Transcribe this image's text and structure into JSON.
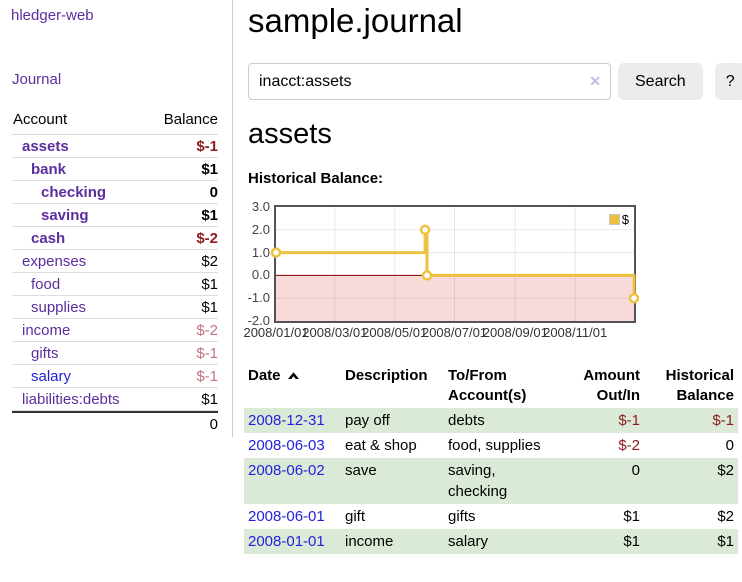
{
  "app_title": "hledger-web",
  "sidebar": {
    "journal_link": "Journal",
    "accounts": {
      "header_account": "Account",
      "header_balance": "Balance",
      "rows": [
        {
          "name": "assets",
          "balance": "$-1"
        },
        {
          "name": "bank",
          "balance": "$1"
        },
        {
          "name": "checking",
          "balance": "0"
        },
        {
          "name": "saving",
          "balance": "$1"
        },
        {
          "name": "cash",
          "balance": "$-2"
        },
        {
          "name": "expenses",
          "balance": "$2"
        },
        {
          "name": "food",
          "balance": "$1"
        },
        {
          "name": "supplies",
          "balance": "$1"
        },
        {
          "name": "income",
          "balance": "$-2"
        },
        {
          "name": "gifts",
          "balance": "$-1"
        },
        {
          "name": "salary",
          "balance": "$-1"
        },
        {
          "name": "liabilities:debts",
          "balance": "$1"
        }
      ],
      "total": "0"
    }
  },
  "main": {
    "title": "sample.journal",
    "search": {
      "value": "inacct:assets",
      "clear_glyph": "✕",
      "button_label": "Search",
      "help_label": "?"
    },
    "section_title": "assets",
    "chart_title": "Historical Balance:"
  },
  "chart_data": {
    "type": "line",
    "step": true,
    "title": "Historical Balance",
    "series": [
      {
        "name": "$",
        "color": "#edc240",
        "points": [
          [
            "2008-01-01",
            1
          ],
          [
            "2008-06-01",
            2
          ],
          [
            "2008-06-03",
            0
          ],
          [
            "2008-12-31",
            -1
          ]
        ]
      }
    ],
    "ylim": [
      -2,
      3
    ],
    "yticks": [
      "3.0",
      "2.0",
      "1.0",
      "0.0",
      "-1.0",
      "-2.0"
    ],
    "xticks": [
      "2008/01/01",
      "2008/03/01",
      "2008/05/01",
      "2008/07/01",
      "2008/09/01",
      "2008/11/01"
    ],
    "legend": {
      "label": "$",
      "position": "top-right"
    },
    "negative_region_color": "#f9dada",
    "zero_line_color": "#8b0000",
    "grid": true
  },
  "register": {
    "headers": {
      "date": "Date",
      "description": "Description",
      "tofrom_1": "To/From",
      "tofrom_2": "Account(s)",
      "amount_1": "Amount",
      "amount_2": "Out/In",
      "balance_1": "Historical",
      "balance_2": "Balance"
    },
    "rows": [
      {
        "date": "2008-12-31",
        "description": "pay off",
        "accounts": "debts",
        "amount": "$-1",
        "balance": "$-1"
      },
      {
        "date": "2008-06-03",
        "description": "eat & shop",
        "accounts": "food, supplies",
        "amount": "$-2",
        "balance": "0"
      },
      {
        "date": "2008-06-02",
        "description": "save",
        "accounts": "saving, checking",
        "amount": "0",
        "balance": "$2"
      },
      {
        "date": "2008-06-01",
        "description": "gift",
        "accounts": "gifts",
        "amount": "$1",
        "balance": "$2"
      },
      {
        "date": "2008-01-01",
        "description": "income",
        "accounts": "salary",
        "amount": "$1",
        "balance": "$1"
      }
    ]
  },
  "colors": {
    "link_purple": "#5b2e9e",
    "link_blue": "#2222dd",
    "negative": "#8f1d21",
    "negative_faded": "#c4737f",
    "row_green": "#dbead7",
    "chart_line": "#edc240",
    "negative_region": "#f9dada"
  }
}
